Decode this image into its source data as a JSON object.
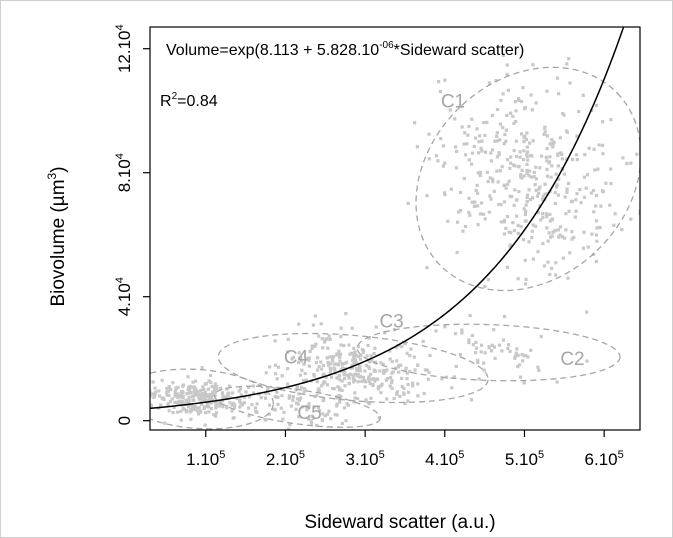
{
  "chart_data": {
    "type": "scatter",
    "xlabel": "Sideward scatter (a.u.)",
    "ylabel": "Biovolume (µm³)",
    "ylabel_parts": {
      "main": "Biovolume (µm",
      "exp": "3",
      "close": ")"
    },
    "xlim": [
      30000,
      645000
    ],
    "ylim": [
      -3000,
      127000
    ],
    "x_ticks": [
      {
        "value": 100000,
        "mant": "1.10",
        "exp": "5"
      },
      {
        "value": 200000,
        "mant": "2.10",
        "exp": "5"
      },
      {
        "value": 300000,
        "mant": "3.10",
        "exp": "5"
      },
      {
        "value": 400000,
        "mant": "4.10",
        "exp": "5"
      },
      {
        "value": 500000,
        "mant": "5.10",
        "exp": "5"
      },
      {
        "value": 600000,
        "mant": "6.10",
        "exp": "5"
      }
    ],
    "y_ticks": [
      {
        "value": 0,
        "mant": "0",
        "exp": ""
      },
      {
        "value": 40000,
        "mant": "4.10",
        "exp": "4"
      },
      {
        "value": 80000,
        "mant": "8.10",
        "exp": "4"
      },
      {
        "value": 120000,
        "mant": "12.10",
        "exp": "4"
      }
    ],
    "fit": {
      "intercept": 8.113,
      "slope": 5.828e-06,
      "x_min": 30000,
      "x_max": 645000
    },
    "equation": {
      "part1": "Volume=exp(8.113 + 5.828.10",
      "exp": "-06",
      "part2": "*Sideward scatter)"
    },
    "r2": {
      "base": "R",
      "exp": "2",
      "rest": "=0.84"
    },
    "clusters": [
      {
        "label": "C1",
        "cx": 505000,
        "cy": 78000,
        "rx": 155000,
        "ry": 32000,
        "angle_deg": -44,
        "label_x": 395000,
        "label_y": 101000,
        "n": 420,
        "sx": 52000,
        "sy": 14000
      },
      {
        "label": "C2",
        "cx": 455000,
        "cy": 22000,
        "rx": 165000,
        "ry": 9000,
        "angle_deg": 2,
        "label_x": 545000,
        "label_y": 18000,
        "n": 60,
        "sx": 48000,
        "sy": 4500
      },
      {
        "label": "C3",
        "cx": 285000,
        "cy": 17000,
        "rx": 170000,
        "ry": 10500,
        "angle_deg": 5,
        "label_x": 318000,
        "label_y": 30000,
        "n": 320,
        "sx": 45000,
        "sy": 4500
      },
      {
        "label": "C4",
        "cx": 90000,
        "cy": 7000,
        "rx": 95000,
        "ry": 9500,
        "angle_deg": 4,
        "label_x": 198000,
        "label_y": 18500,
        "n": 260,
        "sx": 35000,
        "sy": 2600
      },
      {
        "label": "C5",
        "cx": 215000,
        "cy": 4500,
        "rx": 105000,
        "ry": 5500,
        "angle_deg": 8,
        "label_x": 215000,
        "label_y": 500,
        "n": 80,
        "sx": 38000,
        "sy": 2500
      }
    ],
    "point_color": "#c8c8c8",
    "ellipse_color": "#a6a6a6",
    "line_color": "#000000",
    "grid": false,
    "legend": "none"
  }
}
